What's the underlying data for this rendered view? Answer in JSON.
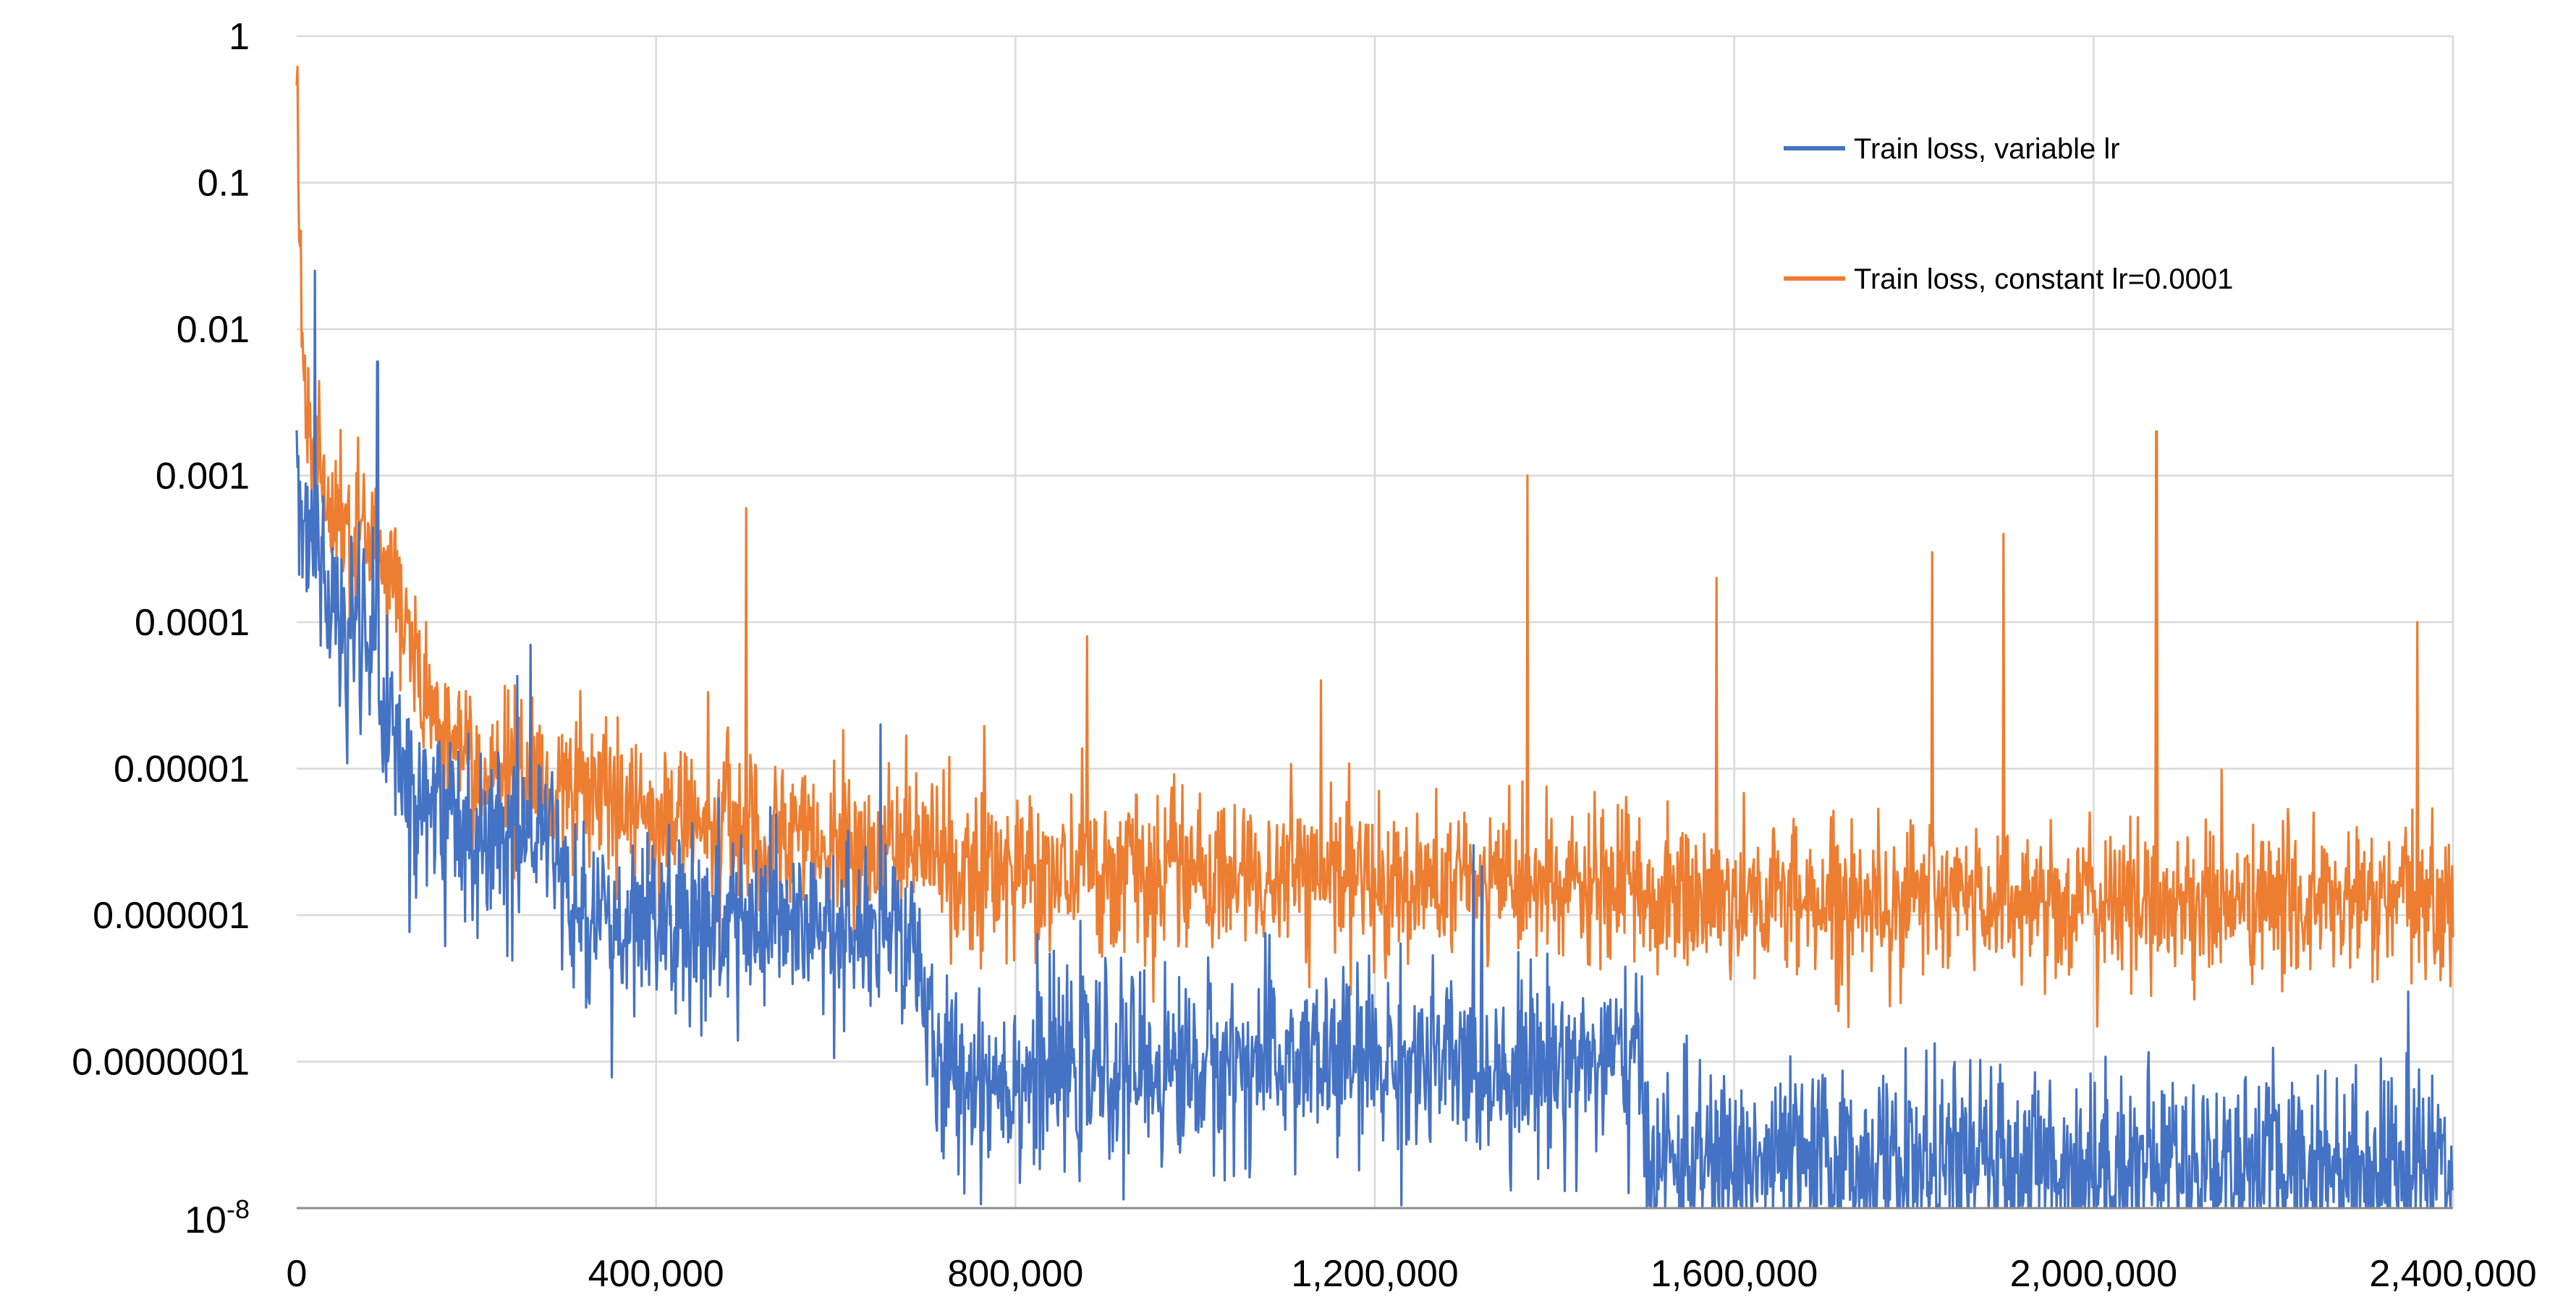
{
  "chart_data": {
    "type": "line",
    "x_axis": {
      "min": 0,
      "max": 2400000,
      "tick_values": [
        0,
        400000,
        800000,
        1200000,
        1600000,
        2000000,
        2400000
      ],
      "tick_labels": [
        "0",
        "400,000",
        "800,000",
        "1,200,000",
        "1,600,000",
        "2,000,000",
        "2,400,000"
      ],
      "label": ""
    },
    "y_axis": {
      "scale": "log",
      "min": 1e-08,
      "max": 1,
      "tick_values": [
        1,
        0.1,
        0.01,
        0.001,
        0.0001,
        1e-05,
        1e-06,
        1e-07,
        1e-08
      ],
      "tick_labels": [
        "1",
        "0.1",
        "0.01",
        "0.001",
        "0.0001",
        "0.00001",
        "0.000001",
        "0.0000001",
        ""
      ],
      "bottom_label_base": "10",
      "bottom_label_exp": "-8",
      "label": ""
    },
    "grid": true,
    "legend_position": "top-right",
    "series": [
      {
        "name": "Train loss, variable lr",
        "color": "#4472C4",
        "x": [
          0,
          5000,
          20000,
          50000,
          80000,
          100000,
          130000,
          200000,
          250000,
          290000,
          310000,
          400000,
          500000,
          600000,
          690000,
          710000,
          800000,
          900000,
          1000000,
          1100000,
          1200000,
          1300000,
          1400000,
          1490000,
          1510000,
          1600000,
          1700000,
          1800000,
          1900000,
          2000000,
          2100000,
          2200000,
          2300000,
          2400000
        ],
        "median": [
          0.002,
          0.0008,
          0.0003,
          8e-05,
          8e-05,
          2e-05,
          7e-06,
          4e-06,
          4e-06,
          3e-06,
          8e-07,
          8e-07,
          8e-07,
          7e-07,
          7e-07,
          8e-08,
          8e-08,
          9e-08,
          9e-08,
          1e-07,
          1e-07,
          9e-08,
          1e-07,
          1e-07,
          2e-08,
          2e-08,
          2e-08,
          2e-08,
          2e-08,
          2e-08,
          2e-08,
          2e-08,
          2e-08,
          2e-08
        ],
        "spikes": [
          {
            "x": 20000,
            "y": 0.025
          },
          {
            "x": 90000,
            "y": 0.006
          },
          {
            "x": 260000,
            "y": 7e-05
          },
          {
            "x": 650000,
            "y": 2e-05
          },
          {
            "x": 1310000,
            "y": 3e-06
          },
          {
            "x": 2350000,
            "y": 3e-07
          }
        ]
      },
      {
        "name": "Train loss, constant lr=0.0001",
        "color": "#ED7D31",
        "x": [
          0,
          3000,
          10000,
          30000,
          60000,
          90000,
          110000,
          130000,
          160000,
          200000,
          300000,
          400000,
          500000,
          600000,
          700000,
          720000,
          800000,
          900000,
          1000000,
          1100000,
          1200000,
          1300000,
          1400000,
          1490000,
          1510000,
          1600000,
          1700000,
          1800000,
          1900000,
          2000000,
          2100000,
          2200000,
          2300000,
          2400000
        ],
        "median": [
          0.5,
          0.05,
          0.003,
          0.0008,
          0.0005,
          0.0003,
          0.00015,
          6e-05,
          2e-05,
          1e-05,
          7e-06,
          5e-06,
          4e-06,
          3e-06,
          3e-06,
          2e-06,
          2e-06,
          2e-06,
          1.8e-06,
          1.8e-06,
          1.7e-06,
          1.6e-06,
          1.5e-06,
          1.5e-06,
          1.3e-06,
          1.3e-06,
          1.3e-06,
          1.3e-06,
          1.3e-06,
          1.2e-06,
          1.2e-06,
          1.2e-06,
          1.2e-06,
          1.2e-06
        ],
        "spikes": [
          {
            "x": 500000,
            "y": 0.0006
          },
          {
            "x": 880000,
            "y": 8e-05
          },
          {
            "x": 1140000,
            "y": 4e-05
          },
          {
            "x": 1370000,
            "y": 0.001
          },
          {
            "x": 1580000,
            "y": 0.0002
          },
          {
            "x": 1820000,
            "y": 0.0003
          },
          {
            "x": 1900000,
            "y": 0.0004
          },
          {
            "x": 2070000,
            "y": 0.002
          },
          {
            "x": 2360000,
            "y": 0.0001
          }
        ]
      }
    ]
  }
}
